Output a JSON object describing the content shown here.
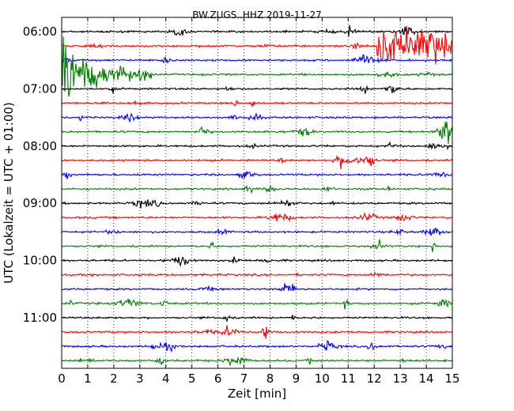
{
  "chart_data": {
    "type": "line",
    "title": "BW.ZUGS..HHZ 2019-11-27",
    "xlabel": "Zeit  [min]",
    "ylabel": "UTC (Lokalzeit = UTC + 01:00)",
    "xlim": [
      0,
      15
    ],
    "x_ticks": [
      "0",
      "1",
      "2",
      "3",
      "4",
      "5",
      "6",
      "7",
      "8",
      "9",
      "10",
      "11",
      "12",
      "13",
      "14",
      "15"
    ],
    "y_ticks": [
      "06:00",
      "07:00",
      "08:00",
      "09:00",
      "10:00",
      "11:00"
    ],
    "trace_start": "06:00",
    "trace_interval_min": 15,
    "trace_count": 24,
    "grid": true,
    "colors": [
      "#000000",
      "#ff0000",
      "#0000ff",
      "#008000"
    ],
    "events": [
      {
        "trace_start": "06:15",
        "start_min": 12.1,
        "end_min": 15.0
      },
      {
        "trace_start": "06:45",
        "start_min": 0.0,
        "end_min": 3.5
      }
    ]
  }
}
